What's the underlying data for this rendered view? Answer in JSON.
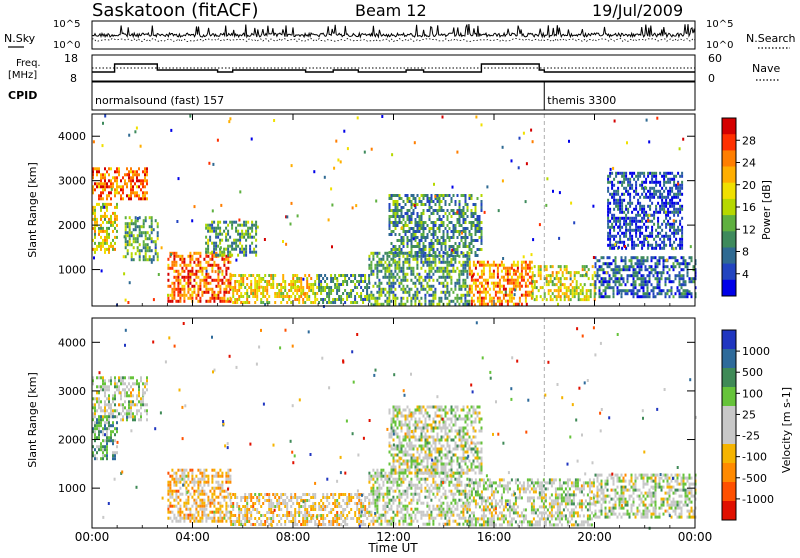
{
  "header": {
    "station": "Saskatoon (fitACF)",
    "beam": "Beam 12",
    "date": "19/Jul/2009"
  },
  "strip": {
    "nsky_label": "N.Sky",
    "nsearch_label": "N.Search",
    "nsky_ticks": [
      "10^5",
      "10^0"
    ],
    "nsearch_ticks": [
      "10^5",
      "10^0"
    ],
    "freq_label_line1": "Freq.",
    "freq_label_line2": "[MHz]",
    "freq_ticks": [
      "18",
      "8"
    ],
    "nave_label": "Nave",
    "nave_ticks": [
      "60",
      "0"
    ],
    "cpid_label": "CPID",
    "cpid_programs": [
      {
        "name": "normalsound (fast) 157",
        "start_hour": 0
      },
      {
        "name": "themis 3300",
        "start_hour": 18
      }
    ]
  },
  "time_axis": {
    "label": "Time UT",
    "ticks": [
      "00:00",
      "04:00",
      "08:00",
      "12:00",
      "16:00",
      "20:00",
      "00:00"
    ],
    "range_hours": [
      0,
      24
    ]
  },
  "chart_data": [
    {
      "type": "heatmap",
      "name": "power",
      "ylabel": "Slant Range [km]",
      "ylim": [
        180,
        4500
      ],
      "yticks": [
        1000,
        2000,
        3000,
        4000
      ],
      "colorbar_label": "Power [dB]",
      "colorbar_ticks": [
        "28",
        "24",
        "20",
        "16",
        "12",
        "8",
        "4"
      ],
      "colorbar_colors": [
        "#d40000",
        "#ff3000",
        "#ff7e00",
        "#ffae00",
        "#f0e000",
        "#b6d800",
        "#5fb040",
        "#3e8a5c",
        "#2f6a92",
        "#2244c0",
        "#0000e8"
      ],
      "regions": [
        {
          "t": [
            0.0,
            2.2
          ],
          "r": [
            2600,
            3300
          ],
          "level": 0.8
        },
        {
          "t": [
            0.0,
            1.0
          ],
          "r": [
            1400,
            2500
          ],
          "level": 0.55
        },
        {
          "t": [
            1.3,
            2.6
          ],
          "r": [
            1200,
            2200
          ],
          "level": 0.35
        },
        {
          "t": [
            3.0,
            5.5
          ],
          "r": [
            300,
            1400
          ],
          "level": 0.8
        },
        {
          "t": [
            5.5,
            9.0
          ],
          "r": [
            250,
            900
          ],
          "level": 0.6
        },
        {
          "t": [
            9.0,
            11.0
          ],
          "r": [
            250,
            900
          ],
          "level": 0.35
        },
        {
          "t": [
            4.5,
            6.5
          ],
          "r": [
            1300,
            2100
          ],
          "level": 0.35
        },
        {
          "t": [
            11.0,
            15.0
          ],
          "r": [
            250,
            1400
          ],
          "level": 0.35
        },
        {
          "t": [
            15.0,
            17.5
          ],
          "r": [
            250,
            1200
          ],
          "level": 0.75
        },
        {
          "t": [
            17.5,
            20.0
          ],
          "r": [
            300,
            1100
          ],
          "level": 0.55
        },
        {
          "t": [
            11.8,
            15.5
          ],
          "r": [
            1300,
            2700
          ],
          "level": 0.3
        },
        {
          "t": [
            20.0,
            24.0
          ],
          "r": [
            400,
            1300
          ],
          "level": 0.2
        },
        {
          "t": [
            20.5,
            23.5
          ],
          "r": [
            1500,
            3200
          ],
          "level": 0.15
        }
      ]
    },
    {
      "type": "heatmap",
      "name": "velocity",
      "ylabel": "Slant Range [km]",
      "ylim": [
        180,
        4500
      ],
      "yticks": [
        1000,
        2000,
        3000,
        4000
      ],
      "colorbar_label": "Velocity [m s-1]",
      "colorbar_ticks": [
        "1000",
        "500",
        "100",
        "25",
        "-25",
        "-100",
        "-500",
        "-1000"
      ],
      "colorbar_colors": [
        "#2036c0",
        "#2e6a9a",
        "#3f8a57",
        "#66c33a",
        "#c8c8c8",
        "#c8c8c8",
        "#f5b400",
        "#ff8a00",
        "#ff5000",
        "#e01000"
      ],
      "regions": [
        {
          "t": [
            0.0,
            2.2
          ],
          "r": [
            2400,
            3300
          ],
          "level": 0.45
        },
        {
          "t": [
            0.0,
            1.0
          ],
          "r": [
            1600,
            2500
          ],
          "level": 0.2
        },
        {
          "t": [
            3.0,
            5.5
          ],
          "r": [
            300,
            1400
          ],
          "level": 0.7
        },
        {
          "t": [
            5.5,
            11.0
          ],
          "r": [
            250,
            900
          ],
          "level": 0.65
        },
        {
          "t": [
            11.0,
            15.0
          ],
          "r": [
            250,
            1400
          ],
          "level": 0.45
        },
        {
          "t": [
            15.0,
            20.0
          ],
          "r": [
            250,
            1200
          ],
          "level": 0.45
        },
        {
          "t": [
            11.8,
            15.5
          ],
          "r": [
            1300,
            2700
          ],
          "level": 0.45
        },
        {
          "t": [
            20.0,
            24.0
          ],
          "r": [
            400,
            1300
          ],
          "level": 0.45
        }
      ]
    }
  ]
}
